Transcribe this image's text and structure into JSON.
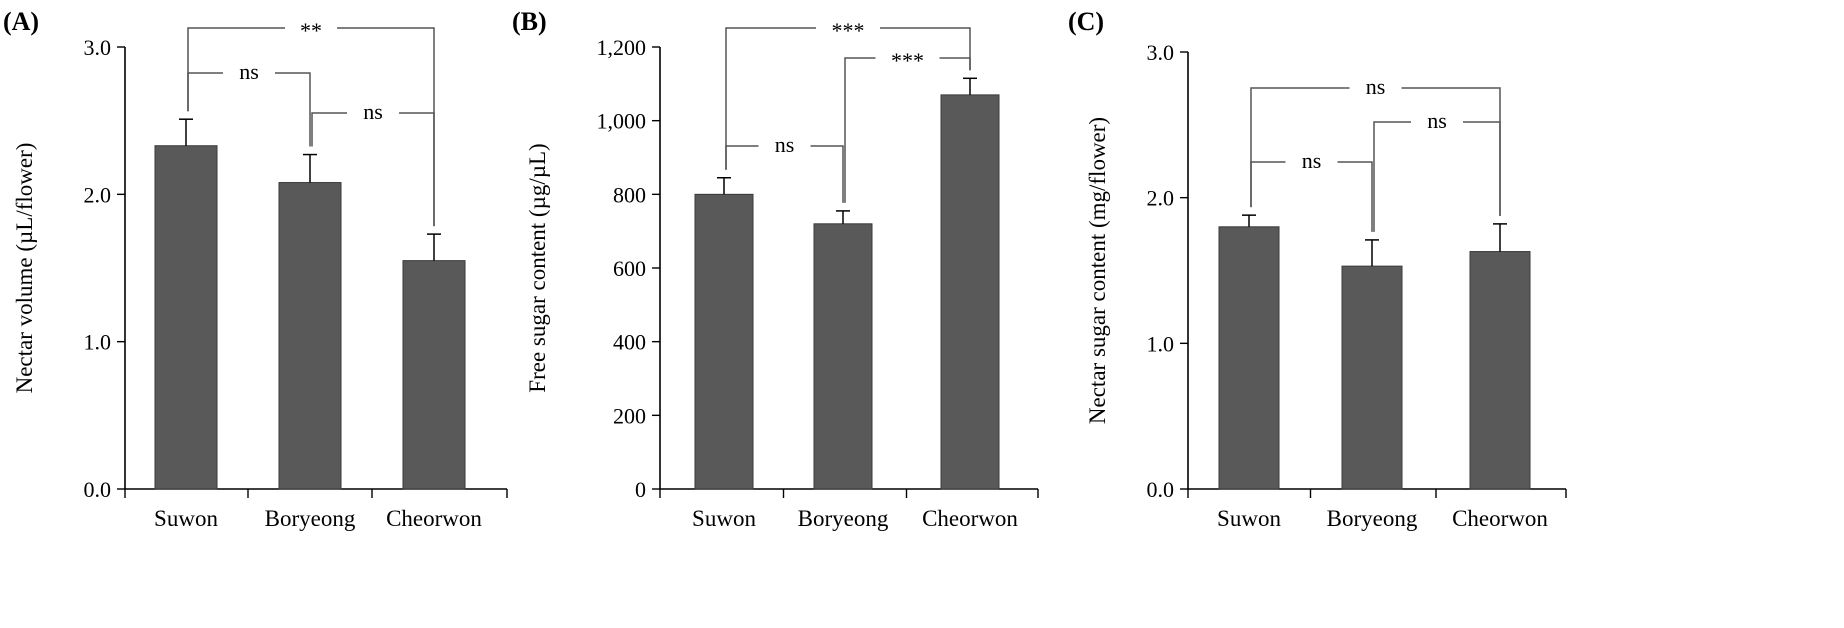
{
  "colors": {
    "bar": "#595959",
    "bar_edge": "#3a3a3a",
    "axis": "#000000",
    "bracket": "#555555"
  },
  "chart_data": [
    {
      "type": "bar",
      "panel_label": "(A)",
      "categories": [
        "Suwon",
        "Boryeong",
        "Cheorwon"
      ],
      "values": [
        2.33,
        2.08,
        1.55
      ],
      "errors": [
        0.18,
        0.19,
        0.18
      ],
      "ylabel": "Nectar volume (µL/flower)",
      "xlabel": "",
      "ylim": [
        0,
        3.0
      ],
      "yticks": [
        0,
        1.0,
        2.0,
        3.0
      ],
      "ytick_labels": [
        "0.0",
        "1.0",
        "2.0",
        "3.0"
      ],
      "grid": false,
      "significance": [
        {
          "from": 0,
          "to": 2,
          "label": "**"
        },
        {
          "from": 0,
          "to": 1,
          "label": "ns"
        },
        {
          "from": 1,
          "to": 2,
          "label": "ns"
        }
      ]
    },
    {
      "type": "bar",
      "panel_label": "(B)",
      "categories": [
        "Suwon",
        "Boryeong",
        "Cheorwon"
      ],
      "values": [
        800,
        720,
        1070
      ],
      "errors": [
        45,
        35,
        45
      ],
      "ylabel": "Free sugar content (µg/µL)",
      "xlabel": "",
      "ylim": [
        0,
        1300
      ],
      "yticks": [
        0,
        200,
        400,
        600,
        800,
        1000,
        1200
      ],
      "ytick_labels": [
        "0",
        "200",
        "400",
        "600",
        "800",
        "1,000",
        "1,200"
      ],
      "grid": false,
      "significance": [
        {
          "from": 0,
          "to": 2,
          "label": "***"
        },
        {
          "from": 1,
          "to": 2,
          "label": "***"
        },
        {
          "from": 0,
          "to": 1,
          "label": "ns"
        }
      ]
    },
    {
      "type": "bar",
      "panel_label": "(C)",
      "categories": [
        "Suwon",
        "Boryeong",
        "Cheorwon"
      ],
      "values": [
        1.8,
        1.53,
        1.63
      ],
      "errors": [
        0.08,
        0.18,
        0.19
      ],
      "ylabel": "Nectar sugar content (mg/flower)",
      "xlabel": "",
      "ylim": [
        0,
        3.0
      ],
      "yticks": [
        0,
        1.0,
        2.0,
        3.0
      ],
      "ytick_labels": [
        "0.0",
        "1.0",
        "2.0",
        "3.0"
      ],
      "grid": false,
      "significance": [
        {
          "from": 0,
          "to": 2,
          "label": "ns"
        },
        {
          "from": 1,
          "to": 2,
          "label": "ns"
        },
        {
          "from": 0,
          "to": 1,
          "label": "ns"
        }
      ]
    }
  ]
}
